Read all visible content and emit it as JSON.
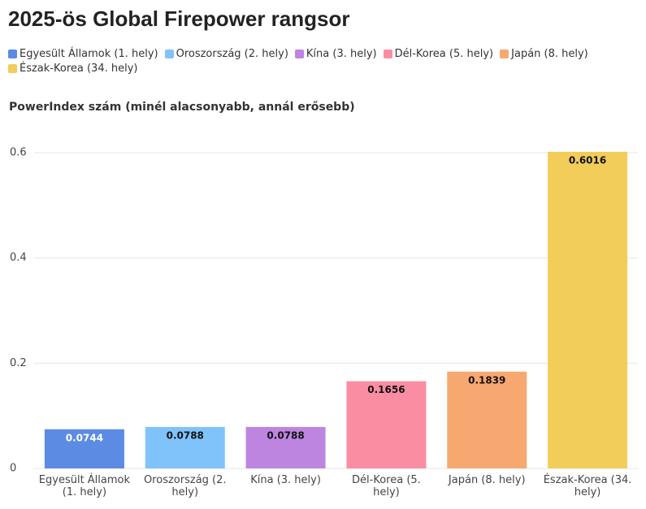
{
  "chart_data": {
    "type": "bar",
    "title": "2025-ös Global Firepower rangsor",
    "y_label": "PowerIndex szám (minél alacsonyabb, annál erősebb)",
    "categories": [
      "Egyesült Államok (1. hely)",
      "Oroszország (2. hely)",
      "Kína (3. hely)",
      "Dél-Korea (5. hely)",
      "Japán (8. hely)",
      "Észak-Korea (34. hely)"
    ],
    "values": [
      0.0744,
      0.0788,
      0.0788,
      0.1656,
      0.1839,
      0.6016
    ],
    "colors": [
      "#5b8be3",
      "#80c3fa",
      "#bd85e0",
      "#fb8da3",
      "#f7a870",
      "#f3cd5a"
    ],
    "ylim": [
      0,
      0.6016
    ],
    "yticks": [
      0,
      0.2,
      0.4,
      0.6
    ],
    "grid": true
  }
}
